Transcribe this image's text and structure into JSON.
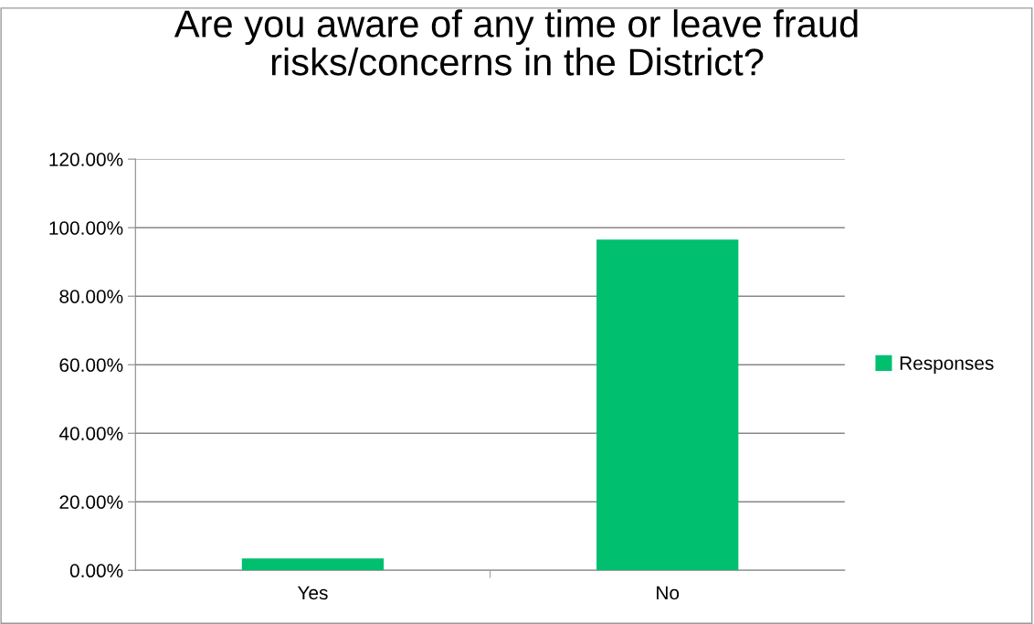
{
  "chart_data": {
    "type": "bar",
    "title": "Are you aware of any time or leave fraud\nrisks/concerns in the District?",
    "categories": [
      "Yes",
      "No"
    ],
    "series": [
      {
        "name": "Responses",
        "color": "#00bf6f",
        "values": [
          3.5,
          96.5
        ]
      }
    ],
    "ylim": [
      0,
      120
    ],
    "yticks": [
      {
        "value": 0,
        "label": "0.00%"
      },
      {
        "value": 20,
        "label": "20.00%"
      },
      {
        "value": 40,
        "label": "40.00%"
      },
      {
        "value": 60,
        "label": "60.00%"
      },
      {
        "value": 80,
        "label": "80.00%"
      },
      {
        "value": 100,
        "label": "100.00%"
      },
      {
        "value": 120,
        "label": "120.00%"
      }
    ],
    "grid": "y",
    "legend": "right"
  }
}
